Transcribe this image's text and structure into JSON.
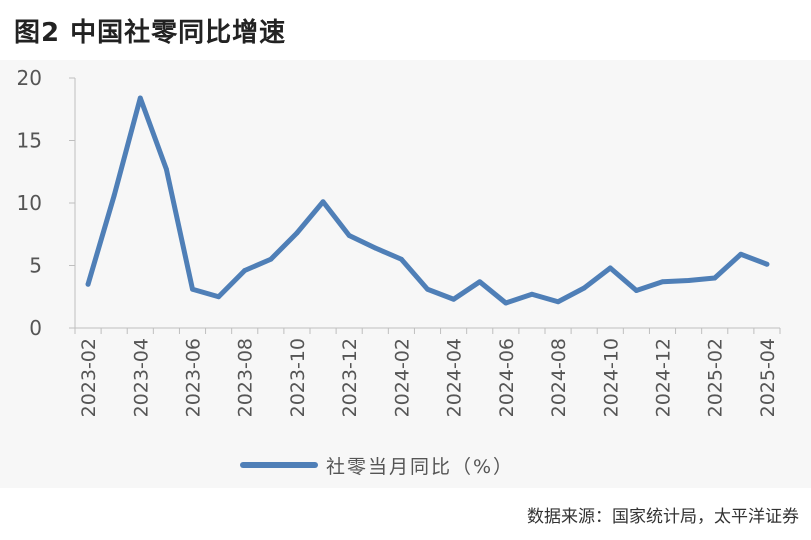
{
  "title": "图2  中国社零同比增速",
  "source": "数据来源：国家统计局，太平洋证券",
  "colors": {
    "series": "#4f7fb7",
    "axis": "#bfbfbf",
    "tick": "#555555",
    "panel": "#f7f7f7"
  },
  "chart_data": {
    "type": "line",
    "title": "图2  中国社零同比增速",
    "xlabel": "",
    "ylabel": "",
    "ylim": [
      0,
      20
    ],
    "yticks": [
      0,
      5,
      10,
      15,
      20
    ],
    "grid": false,
    "legend_position": "bottom",
    "x": [
      "2023-02",
      "2023-03",
      "2023-04",
      "2023-05",
      "2023-06",
      "2023-07",
      "2023-08",
      "2023-09",
      "2023-10",
      "2023-11",
      "2023-12",
      "2024-01",
      "2024-02",
      "2024-03",
      "2024-04",
      "2024-05",
      "2024-06",
      "2024-07",
      "2024-08",
      "2024-09",
      "2024-10",
      "2024-11",
      "2024-12",
      "2025-01",
      "2025-02",
      "2025-03",
      "2025-04"
    ],
    "xtick_labels": [
      "2023-02",
      "2023-04",
      "2023-06",
      "2023-08",
      "2023-10",
      "2023-12",
      "2024-02",
      "2024-04",
      "2024-06",
      "2024-08",
      "2024-10",
      "2024-12",
      "2025-02",
      "2025-04"
    ],
    "series": [
      {
        "name": "社零当月同比（%）",
        "color": "#4f7fb7",
        "values": [
          3.5,
          10.6,
          18.4,
          12.7,
          3.1,
          2.5,
          4.6,
          5.5,
          7.6,
          10.1,
          7.4,
          6.4,
          5.5,
          3.1,
          2.3,
          3.7,
          2.0,
          2.7,
          2.1,
          3.2,
          4.8,
          3.0,
          3.7,
          3.8,
          4.0,
          5.9,
          5.1
        ]
      }
    ]
  }
}
